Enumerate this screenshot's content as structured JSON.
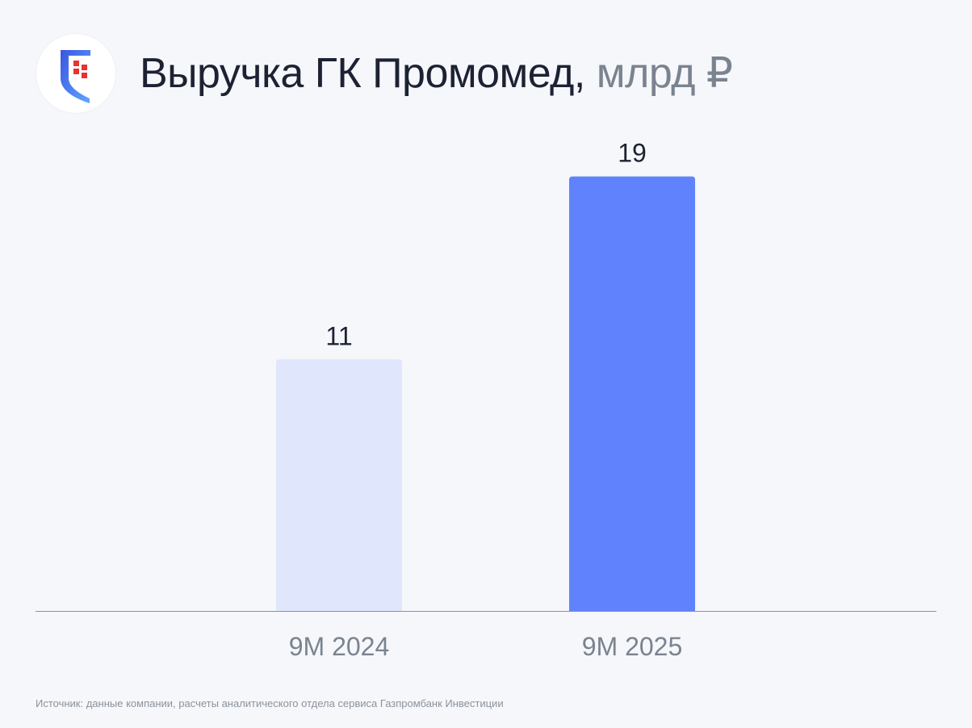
{
  "header": {
    "title": "Выручка ГК Промомед,",
    "unit": "млрд ₽"
  },
  "logo": {
    "icon": "promomed-shield-logo"
  },
  "colors": {
    "bar_light": "#e0e6fc",
    "bar_accent": "#6082fc",
    "axis": "#8b929c",
    "label": "#1d2233",
    "tick": "#7a838f"
  },
  "chart_data": {
    "type": "bar",
    "categories": [
      "9M 2024",
      "9M 2025"
    ],
    "values": [
      11,
      19
    ],
    "data_labels": [
      "11",
      "19"
    ],
    "ylim": [
      0,
      20.15
    ],
    "grid": false,
    "legend": "none"
  },
  "footer": {
    "source": "Источник: данные компании, расчеты аналитического отдела сервиса Газпромбанк Инвестиции"
  }
}
